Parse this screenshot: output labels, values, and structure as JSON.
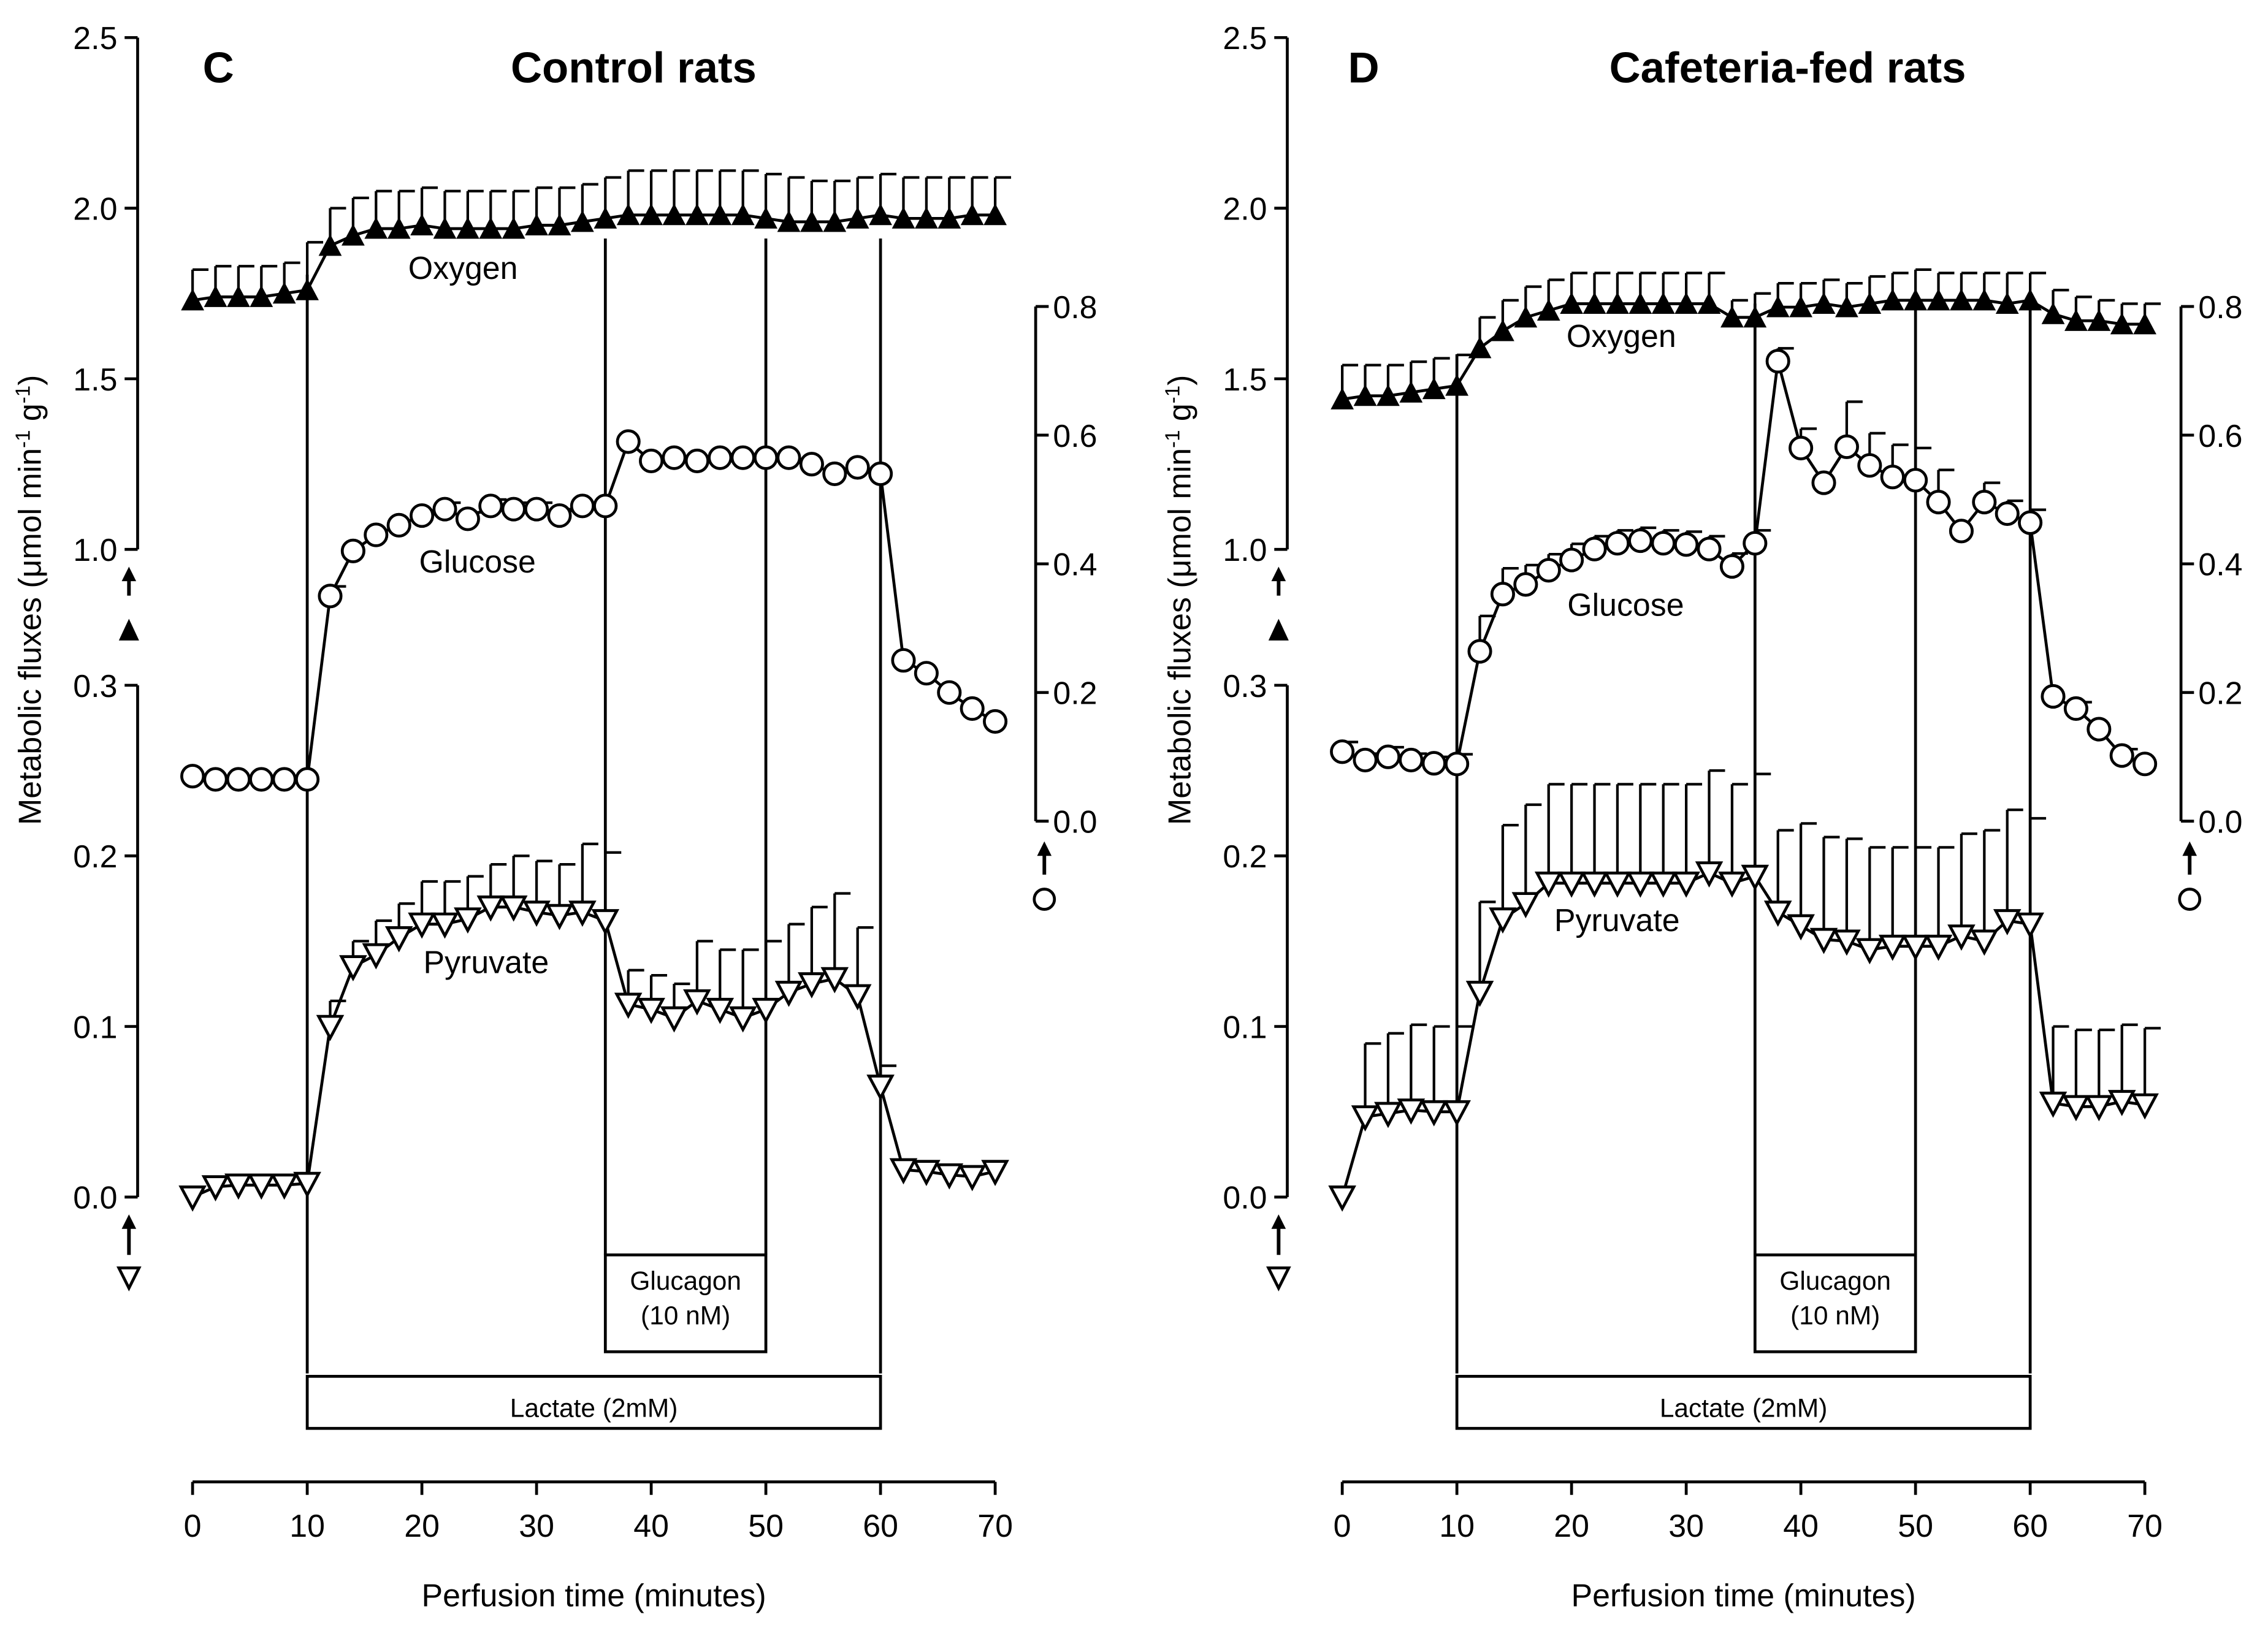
{
  "chart_data": [
    {
      "type": "line",
      "panel": "C",
      "title": "Control rats",
      "xlabel": "Perfusion time (minutes)",
      "ylabel": "Metabolic fluxes (μmol min-1 g-1)",
      "ylabel_parts": [
        "Metabolic fluxes (μmol min",
        "-1",
        " g",
        "-1",
        ")"
      ],
      "xlim": [
        0,
        70
      ],
      "xticks": [
        "0",
        "10",
        "20",
        "30",
        "40",
        "50",
        "60",
        "70"
      ],
      "y_left_upper": {
        "range": [
          1.0,
          2.5
        ],
        "ticks": [
          "1.0",
          "1.5",
          "2.0",
          "2.5"
        ],
        "series": "Oxygen"
      },
      "y_left_lower": {
        "range": [
          0.0,
          0.3
        ],
        "ticks": [
          "0.0",
          "0.1",
          "0.2",
          "0.3"
        ],
        "series": "Pyruvate"
      },
      "y_right": {
        "range": [
          0.0,
          0.8
        ],
        "ticks": [
          "0.0",
          "0.2",
          "0.4",
          "0.6",
          "0.8"
        ],
        "series": "Glucose"
      },
      "x": [
        0,
        2,
        4,
        6,
        8,
        10,
        12,
        14,
        16,
        18,
        20,
        22,
        24,
        26,
        28,
        30,
        32,
        34,
        36,
        38,
        40,
        42,
        44,
        46,
        48,
        50,
        52,
        54,
        56,
        58,
        60,
        62,
        64,
        66,
        68,
        70
      ],
      "series": [
        {
          "name": "Oxygen",
          "axis": "left_upper",
          "marker": "filled-triangle-up",
          "values": [
            1.73,
            1.74,
            1.74,
            1.74,
            1.75,
            1.76,
            1.89,
            1.92,
            1.94,
            1.94,
            1.95,
            1.94,
            1.94,
            1.94,
            1.94,
            1.95,
            1.95,
            1.96,
            1.97,
            1.98,
            1.98,
            1.98,
            1.98,
            1.98,
            1.98,
            1.97,
            1.96,
            1.96,
            1.96,
            1.97,
            1.98,
            1.97,
            1.97,
            1.97,
            1.98,
            1.98
          ],
          "errors": [
            0.09,
            0.09,
            0.09,
            0.09,
            0.09,
            0.14,
            0.11,
            0.11,
            0.11,
            0.11,
            0.11,
            0.11,
            0.11,
            0.11,
            0.11,
            0.11,
            0.11,
            0.11,
            0.12,
            0.13,
            0.13,
            0.13,
            0.13,
            0.13,
            0.13,
            0.13,
            0.13,
            0.12,
            0.12,
            0.12,
            0.12,
            0.12,
            0.12,
            0.12,
            0.11,
            0.11
          ]
        },
        {
          "name": "Glucose",
          "axis": "right",
          "marker": "open-circle",
          "values": [
            0.07,
            0.065,
            0.065,
            0.065,
            0.065,
            0.065,
            0.35,
            0.42,
            0.445,
            0.46,
            0.475,
            0.485,
            0.47,
            0.49,
            0.485,
            0.485,
            0.475,
            0.49,
            0.49,
            0.59,
            0.56,
            0.565,
            0.56,
            0.565,
            0.565,
            0.565,
            0.565,
            0.555,
            0.54,
            0.55,
            0.54,
            0.25,
            0.23,
            0.2,
            0.175,
            0.155
          ],
          "errors": [
            0,
            0,
            0,
            0,
            0,
            0,
            0.015,
            0,
            0,
            0,
            0,
            0.01,
            0.01,
            0.01,
            0.01,
            0.01,
            0.01,
            0,
            0,
            0,
            0,
            0,
            0,
            0,
            0,
            0,
            0,
            0,
            0,
            0,
            0,
            0,
            0,
            0,
            0,
            0
          ]
        },
        {
          "name": "Pyruvate",
          "axis": "left_lower",
          "marker": "open-triangle-down",
          "values": [
            0,
            0.006,
            0.007,
            0.007,
            0.007,
            0.008,
            0.1,
            0.135,
            0.142,
            0.152,
            0.16,
            0.16,
            0.163,
            0.17,
            0.17,
            0.167,
            0.165,
            0.167,
            0.162,
            0.113,
            0.11,
            0.105,
            0.115,
            0.11,
            0.105,
            0.11,
            0.12,
            0.125,
            0.128,
            0.118,
            0.065,
            0.016,
            0.015,
            0.013,
            0.012,
            0.015
          ],
          "errors": [
            0,
            0,
            0,
            0,
            0,
            0,
            0.015,
            0.015,
            0.02,
            0.02,
            0.025,
            0.025,
            0.025,
            0.025,
            0.03,
            0.03,
            0.03,
            0.04,
            0.04,
            0.02,
            0.02,
            0.02,
            0.035,
            0.035,
            0.04,
            0.04,
            0.04,
            0.045,
            0.05,
            0.04,
            0.012,
            0,
            0,
            0,
            0,
            0
          ]
        }
      ],
      "event_times": [
        10,
        36,
        50,
        60
      ],
      "annotations": [
        {
          "text_lines": [
            "Glucagon",
            "(10 nM)"
          ],
          "from": 36,
          "to": 50
        },
        {
          "text_lines": [
            "Lactate (2mM)"
          ],
          "from": 10,
          "to": 60
        }
      ]
    },
    {
      "type": "line",
      "panel": "D",
      "title": "Cafeteria-fed rats",
      "xlabel": "Perfusion time (minutes)",
      "ylabel": "Metabolic fluxes (μmol min-1 g-1)",
      "ylabel_parts": [
        "Metabolic fluxes (μmol min",
        "-1",
        " g",
        "-1",
        ")"
      ],
      "xlim": [
        0,
        70
      ],
      "xticks": [
        "0",
        "10",
        "20",
        "30",
        "40",
        "50",
        "60",
        "70"
      ],
      "y_left_upper": {
        "range": [
          1.0,
          2.5
        ],
        "ticks": [
          "1.0",
          "1.5",
          "2.0",
          "2.5"
        ],
        "series": "Oxygen"
      },
      "y_left_lower": {
        "range": [
          0.0,
          0.3
        ],
        "ticks": [
          "0.0",
          "0.1",
          "0.2",
          "0.3"
        ],
        "series": "Pyruvate"
      },
      "y_right": {
        "range": [
          0.0,
          0.8
        ],
        "ticks": [
          "0.0",
          "0.2",
          "0.4",
          "0.6",
          "0.8"
        ],
        "series": "Glucose"
      },
      "x": [
        0,
        2,
        4,
        6,
        8,
        10,
        12,
        14,
        16,
        18,
        20,
        22,
        24,
        26,
        28,
        30,
        32,
        34,
        36,
        38,
        40,
        42,
        44,
        46,
        48,
        50,
        52,
        54,
        56,
        58,
        60,
        62,
        64,
        66,
        68,
        70
      ],
      "series": [
        {
          "name": "Oxygen",
          "axis": "left_upper",
          "marker": "filled-triangle-up",
          "values": [
            1.44,
            1.45,
            1.45,
            1.46,
            1.47,
            1.48,
            1.59,
            1.64,
            1.68,
            1.7,
            1.72,
            1.72,
            1.72,
            1.72,
            1.72,
            1.72,
            1.72,
            1.68,
            1.68,
            1.71,
            1.71,
            1.72,
            1.71,
            1.72,
            1.73,
            1.73,
            1.73,
            1.73,
            1.73,
            1.72,
            1.73,
            1.69,
            1.67,
            1.67,
            1.66,
            1.66
          ],
          "errors": [
            0.1,
            0.09,
            0.09,
            0.09,
            0.09,
            0.09,
            0.09,
            0.09,
            0.09,
            0.09,
            0.09,
            0.09,
            0.09,
            0.09,
            0.09,
            0.09,
            0.09,
            0.05,
            0.07,
            0.07,
            0.07,
            0.07,
            0.07,
            0.08,
            0.08,
            0.09,
            0.08,
            0.08,
            0.08,
            0.09,
            0.08,
            0.07,
            0.07,
            0.06,
            0.06,
            0.06
          ]
        },
        {
          "name": "Glucose",
          "axis": "right",
          "marker": "open-circle",
          "values": [
            0.108,
            0.095,
            0.1,
            0.095,
            0.09,
            0.089,
            0.264,
            0.353,
            0.368,
            0.39,
            0.406,
            0.423,
            0.432,
            0.436,
            0.432,
            0.43,
            0.423,
            0.396,
            0.432,
            0.715,
            0.58,
            0.526,
            0.582,
            0.553,
            0.535,
            0.53,
            0.496,
            0.451,
            0.496,
            0.478,
            0.464,
            0.194,
            0.175,
            0.143,
            0.102,
            0.089
          ],
          "errors": [
            0.015,
            0.01,
            0.015,
            0.01,
            0.01,
            0.015,
            0.055,
            0.04,
            0.03,
            0.025,
            0.025,
            0.02,
            0.02,
            0.02,
            0.02,
            0.02,
            0.02,
            0.02,
            0.02,
            0.02,
            0.03,
            0,
            0.07,
            0.05,
            0.05,
            0.05,
            0.05,
            0,
            0.03,
            0.02,
            0.02,
            0,
            0.01,
            0,
            0.01,
            0
          ],
          "unused": null
        },
        {
          "name": "Pyruvate",
          "axis": "left_lower",
          "marker": "open-triangle-down",
          "values": [
            0,
            0.047,
            0.049,
            0.051,
            0.05,
            0.05,
            0.12,
            0.163,
            0.172,
            0.184,
            0.184,
            0.184,
            0.184,
            0.184,
            0.184,
            0.184,
            0.19,
            0.184,
            0.188,
            0.167,
            0.159,
            0.151,
            0.15,
            0.145,
            0.147,
            0.147,
            0.147,
            0.153,
            0.15,
            0.162,
            0.16,
            0.055,
            0.053,
            0.053,
            0.056,
            0.054
          ],
          "errors": [
            0,
            0.043,
            0.047,
            0.05,
            0.05,
            0.05,
            0.053,
            0.055,
            0.058,
            0.058,
            0.058,
            0.058,
            0.058,
            0.058,
            0.058,
            0.058,
            0.06,
            0.058,
            0.06,
            0.048,
            0.06,
            0.06,
            0.06,
            0.06,
            0.058,
            0.058,
            0.058,
            0.06,
            0.065,
            0.065,
            0.062,
            0.045,
            0.045,
            0.045,
            0.045,
            0.045
          ]
        }
      ],
      "event_times": [
        10,
        36,
        50,
        60
      ],
      "annotations": [
        {
          "text_lines": [
            "Glucagon",
            "(10 nM)"
          ],
          "from": 36,
          "to": 50
        },
        {
          "text_lines": [
            "Lactate (2mM)"
          ],
          "from": 10,
          "to": 60
        }
      ]
    }
  ]
}
